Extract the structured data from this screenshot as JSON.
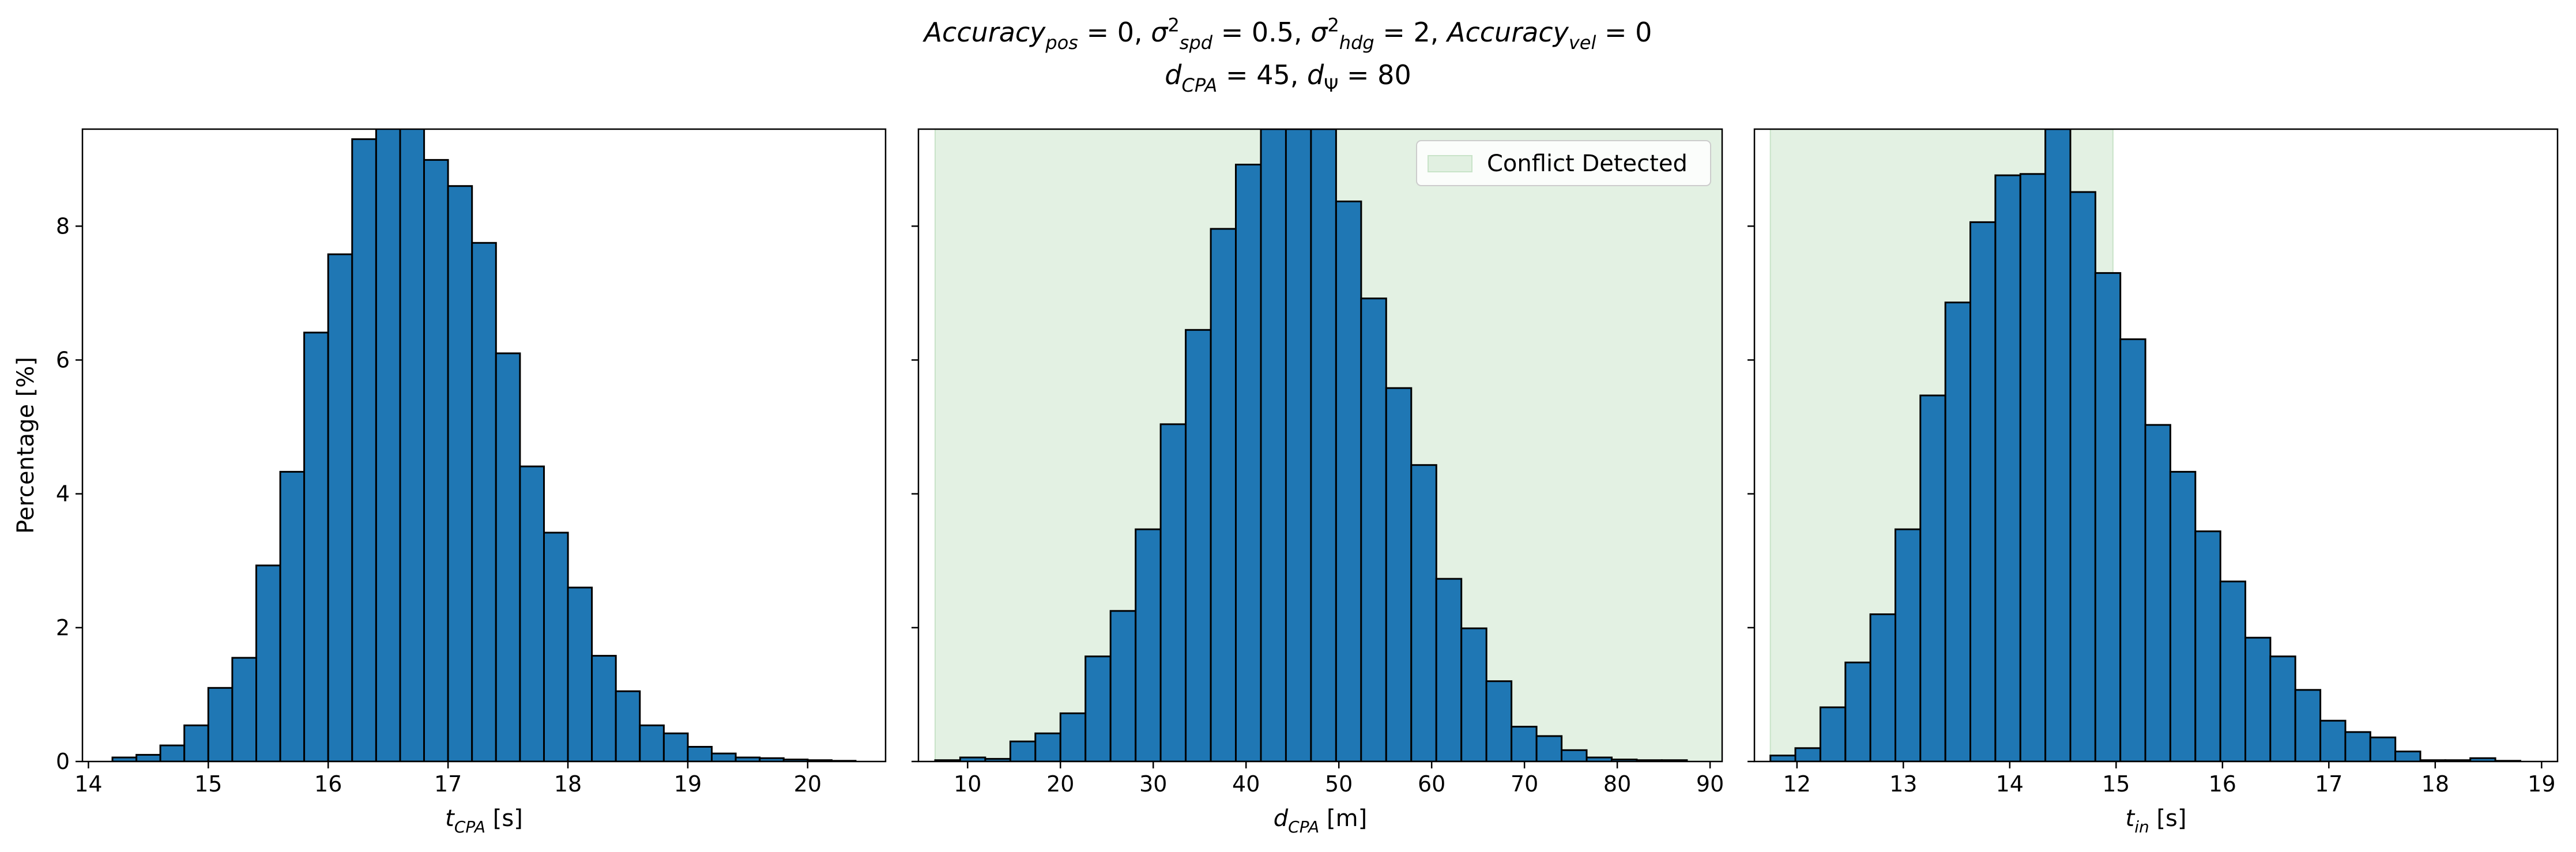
{
  "title": {
    "line1": [
      {
        "t": "Accuracy",
        "i": true
      },
      {
        "t": "pos",
        "i": true,
        "sub": true
      },
      {
        "t": " = 0, "
      },
      {
        "t": "σ",
        "i": true
      },
      {
        "t": "2",
        "sup": true
      },
      {
        "t": "spd",
        "i": true,
        "sub": true
      },
      {
        "t": " = 0.5, "
      },
      {
        "t": "σ",
        "i": true
      },
      {
        "t": "2",
        "sup": true
      },
      {
        "t": "hdg",
        "i": true,
        "sub": true
      },
      {
        "t": " = 2, "
      },
      {
        "t": "Accuracy",
        "i": true
      },
      {
        "t": "vel",
        "i": true,
        "sub": true
      },
      {
        "t": " = 0"
      }
    ],
    "line2": [
      {
        "t": "d",
        "i": true
      },
      {
        "t": "CPA",
        "i": true,
        "sub": true
      },
      {
        "t": " = 45, "
      },
      {
        "t": "d",
        "i": true
      },
      {
        "t": "Ψ",
        "sub": true
      },
      {
        "t": " = 80"
      }
    ]
  },
  "colors": {
    "bar": "#1f77b4",
    "bar_edge": "#000000",
    "conflict_region": "#c8e3c8"
  },
  "chart_data": [
    {
      "type": "bar",
      "histogram": true,
      "x_start": 14.2,
      "bin_width": 0.2,
      "values": [
        0.06,
        0.1,
        0.24,
        0.54,
        1.1,
        1.55,
        2.93,
        4.33,
        6.41,
        7.58,
        9.3,
        9.5,
        9.5,
        8.99,
        8.6,
        7.75,
        6.1,
        4.41,
        3.42,
        2.6,
        1.58,
        1.05,
        0.54,
        0.42,
        0.22,
        0.12,
        0.06,
        0.05,
        0.03,
        0.02,
        0.01
      ],
      "xlim": [
        13.95,
        20.65
      ],
      "ylim": [
        0,
        9.45
      ],
      "xticks": [
        14,
        15,
        16,
        17,
        18,
        19,
        20
      ],
      "yticks": [
        0,
        2,
        4,
        6,
        8
      ],
      "xlabel": [
        {
          "t": "t",
          "i": true
        },
        {
          "t": "CPA",
          "i": true,
          "sub": true
        },
        {
          "t": " [s]"
        }
      ],
      "ylabel": "Percentage [%]",
      "shade": null,
      "legend": null,
      "grid": false
    },
    {
      "type": "bar",
      "histogram": true,
      "x_start": 6.5,
      "bin_width": 2.7,
      "values": [
        0.02,
        0.06,
        0.04,
        0.3,
        0.42,
        0.72,
        1.57,
        2.25,
        3.47,
        5.04,
        6.45,
        7.96,
        8.92,
        9.45,
        9.45,
        9.45,
        8.37,
        6.92,
        5.58,
        4.43,
        2.73,
        1.99,
        1.2,
        0.52,
        0.38,
        0.17,
        0.06,
        0.03,
        0.02,
        0.02
      ],
      "xlim": [
        4.7,
        91.3
      ],
      "ylim": [
        0,
        9.45
      ],
      "xticks": [
        10,
        20,
        30,
        40,
        50,
        60,
        70,
        80,
        90
      ],
      "yticks": [
        0,
        2,
        4,
        6,
        8
      ],
      "xlabel": [
        {
          "t": "d",
          "i": true
        },
        {
          "t": "CPA",
          "i": true,
          "sub": true
        },
        {
          "t": " [m]"
        }
      ],
      "ylabel": "",
      "shade": [
        6.5,
        91.3
      ],
      "legend": {
        "label": "Conflict Detected",
        "placement": "upper-right"
      },
      "grid": false
    },
    {
      "type": "bar",
      "histogram": true,
      "x_start": 11.75,
      "bin_width": 0.235,
      "values": [
        0.09,
        0.2,
        0.81,
        1.48,
        2.2,
        3.47,
        5.47,
        6.86,
        8.06,
        8.76,
        8.78,
        9.45,
        8.51,
        7.3,
        6.31,
        5.03,
        4.33,
        3.44,
        2.69,
        1.85,
        1.57,
        1.07,
        0.61,
        0.44,
        0.36,
        0.15,
        0.02,
        0.02,
        0.05,
        0.01
      ],
      "xlim": [
        11.6,
        19.15
      ],
      "ylim": [
        0,
        9.45
      ],
      "xticks": [
        12,
        13,
        14,
        15,
        16,
        17,
        18,
        19
      ],
      "yticks": [
        0,
        2,
        4,
        6,
        8
      ],
      "xlabel": [
        {
          "t": "t",
          "i": true
        },
        {
          "t": "in",
          "i": true,
          "sub": true
        },
        {
          "t": " [s]"
        }
      ],
      "ylabel": "",
      "shade": [
        11.75,
        14.97
      ],
      "legend": null,
      "grid": false
    }
  ]
}
